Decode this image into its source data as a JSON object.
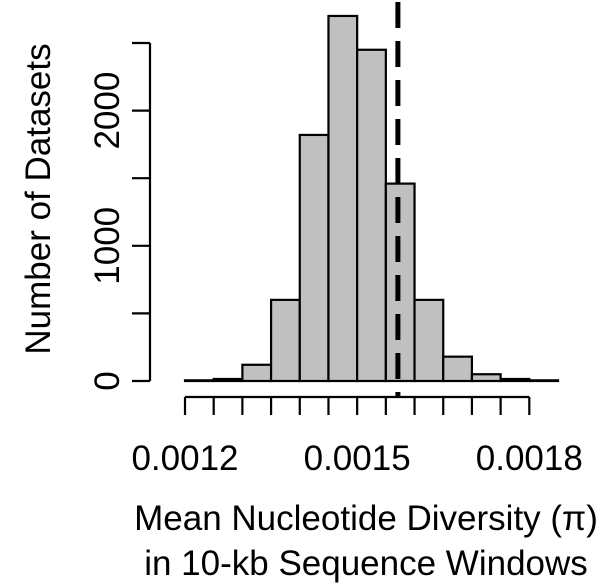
{
  "chart_data": {
    "type": "histogram",
    "xlabel_line1": "Mean Nucleotide Diversity (π)",
    "xlabel_line2": "in 10-kb Sequence Windows",
    "ylabel": "Number of Datasets",
    "bin_edges": [
      0.0012,
      0.00125,
      0.0013,
      0.00135,
      0.0014,
      0.00145,
      0.0015,
      0.00155,
      0.0016,
      0.00165,
      0.0017,
      0.00175,
      0.0018,
      0.00185
    ],
    "counts": [
      5,
      15,
      120,
      600,
      1820,
      2700,
      2450,
      1460,
      600,
      180,
      50,
      15,
      5
    ],
    "x_ticks": [
      0.0012,
      0.00125,
      0.0013,
      0.00135,
      0.0014,
      0.00145,
      0.0015,
      0.00155,
      0.0016,
      0.00165,
      0.0017,
      0.00175,
      0.0018,
      0.00185
    ],
    "x_tick_labels": [
      {
        "value": 0.0012,
        "label": "0.0012"
      },
      {
        "value": 0.0015,
        "label": "0.0015"
      },
      {
        "value": 0.0018,
        "label": "0.0018"
      }
    ],
    "y_ticks": [
      0,
      500,
      1000,
      1500,
      2000,
      2500
    ],
    "y_tick_labels": [
      {
        "value": 0,
        "label": "0"
      },
      {
        "value": 1000,
        "label": "1000"
      },
      {
        "value": 2000,
        "label": "2000"
      }
    ],
    "xlim": [
      0.0012,
      0.00185
    ],
    "ylim": [
      0,
      2500
    ],
    "reference_line": {
      "x": 0.001571,
      "style": "dashed"
    },
    "bar_color": "#c0c0c0",
    "grid": false
  }
}
